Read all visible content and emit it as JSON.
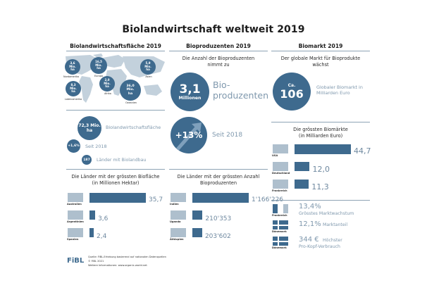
{
  "title": "Biolandwirtschaft weltweit 2019",
  "colors": {
    "accent": "#3e6a8e",
    "light_text": "#7f98ad",
    "rule": "#8ea4b5",
    "map": "#c3d1dc"
  },
  "columns": {
    "area": {
      "heading": "Biolandwirtschaftsfläche 2019",
      "map_regions": [
        {
          "value": "3,6",
          "unit": "Mio.",
          "unit2": "ha",
          "label": "Nordamerika"
        },
        {
          "value": "16,5",
          "unit": "Mio.",
          "unit2": "ha",
          "label": "Europa"
        },
        {
          "value": "5,9",
          "unit": "Mio.",
          "unit2": "ha",
          "label": "Asien"
        },
        {
          "value": "8,3",
          "unit": "Mio.",
          "unit2": "ha",
          "label": "Lateinamerika"
        },
        {
          "value": "2,0",
          "unit": "Mio.",
          "unit2": "ha",
          "label": "Afrika"
        },
        {
          "value": "36,0",
          "unit": "Mio.",
          "unit2": "ha",
          "label": "Ozeanien"
        }
      ],
      "total": {
        "value": "72,3 Mio.",
        "unit": "ha",
        "label": "Biolandwirtschaftsfläche"
      },
      "growth": {
        "value": "+1,6%",
        "label": "Seit 2018"
      },
      "countries": {
        "value": "187",
        "label": "Länder mit Biolandbau"
      },
      "chart_heading_1": "Die Länder mit der grössten Biofläche",
      "chart_heading_2": "(in Millionen Hektar)"
    },
    "producers": {
      "heading": "Bioproduzenten 2019",
      "intro_1": "Die Anzahl der Bioproduzenten",
      "intro_2": "nimmt zu",
      "big_value": "3,1",
      "big_unit": "Millionen",
      "big_label_1": "Bio-",
      "big_label_2": "produzenten",
      "growth_value": "+13%",
      "growth_label": "Seit 2018",
      "chart_heading_1": "Die Länder mit der grössten Anzahl",
      "chart_heading_2": "Bioproduzenten"
    },
    "market": {
      "heading": "Biomarkt 2019",
      "intro_1": "Der globale Markt für Bioprodukte",
      "intro_2": "wächst",
      "big_prefix": "Ca.",
      "big_value": "106",
      "big_label_1": "Globaler Biomarkt in",
      "big_label_2": "Milliarden Euro",
      "chart_heading_1": "Die grössten Biomärkte",
      "chart_heading_2": "(in Milliarden Euro)",
      "facts": [
        {
          "country": "Frankreich",
          "value": "13,4%",
          "label": "Grösstes Marktwachstum",
          "label2": ""
        },
        {
          "country": "Dänemark",
          "value": "12,1%",
          "label": "Marktanteil",
          "label2": ""
        },
        {
          "country": "Dänemark",
          "value": "344 €",
          "label": "Höchster",
          "label2": "Pro-Kopf-Verbrauch"
        }
      ]
    }
  },
  "chart_data": [
    {
      "type": "bar",
      "title": "Die Länder mit der grössten Biofläche (in Millionen Hektar)",
      "categories": [
        "Australien",
        "Argentinien",
        "Spanien"
      ],
      "values": [
        35.7,
        3.6,
        2.4
      ],
      "labels": [
        "35,7",
        "3,6",
        "2,4"
      ],
      "orientation": "horizontal"
    },
    {
      "type": "bar",
      "title": "Die Länder mit der grössten Anzahl Bioproduzenten",
      "categories": [
        "Indien",
        "Uganda",
        "Äthiopien"
      ],
      "values": [
        1166226,
        210353,
        203602
      ],
      "labels": [
        "1'166'226",
        "210'353",
        "203'602"
      ],
      "orientation": "horizontal"
    },
    {
      "type": "bar",
      "title": "Die grössten Biomärkte (in Milliarden Euro)",
      "categories": [
        "USA",
        "Deutschland",
        "Frankreich"
      ],
      "values": [
        44.7,
        12.0,
        11.3
      ],
      "labels": [
        "44,7",
        "12,0",
        "11,3"
      ],
      "orientation": "horizontal"
    }
  ],
  "footer": {
    "logo": "FiBL",
    "line1": "Quelle: FiBL-Erhebung basierend auf nationalen Datenquellen",
    "line2": "© FiBL 2021",
    "line3": "Weitere Informationen: www.organic-world.net"
  }
}
